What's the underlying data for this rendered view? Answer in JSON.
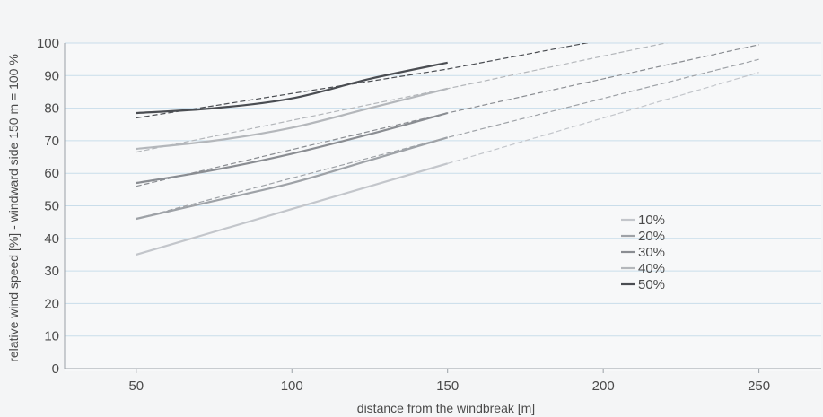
{
  "chart_data": {
    "type": "line",
    "xlabel": "distance from the windbreak [m]",
    "ylabel": "relative wind speed [%] - windward side 150 m = 100 %",
    "xlim": [
      27,
      270
    ],
    "ylim": [
      0,
      100
    ],
    "x_ticks": [
      50,
      100,
      150,
      200,
      250
    ],
    "y_ticks": [
      0,
      10,
      20,
      30,
      40,
      50,
      60,
      70,
      80,
      90,
      100
    ],
    "grid": "horizontal",
    "legend_position": "right",
    "series": [
      {
        "name": "10%",
        "color": "#c3c6cb",
        "solid": {
          "x": [
            50,
            75,
            100,
            125,
            150
          ],
          "y": [
            35,
            42,
            49,
            56,
            63
          ]
        },
        "trend": {
          "x": [
            150,
            200,
            250
          ],
          "y": [
            63,
            77,
            91
          ]
        }
      },
      {
        "name": "20%",
        "color": "#9ea2a7",
        "solid": {
          "x": [
            50,
            75,
            100,
            125,
            150
          ],
          "y": [
            46,
            51.5,
            57,
            64,
            71
          ]
        },
        "trend": {
          "x": [
            50,
            150,
            200,
            250
          ],
          "y": [
            46,
            71,
            83,
            95
          ]
        }
      },
      {
        "name": "30%",
        "color": "#8a8d92",
        "solid": {
          "x": [
            50,
            75,
            100,
            125,
            150
          ],
          "y": [
            57,
            61,
            66,
            72,
            78.5
          ]
        },
        "trend": {
          "x": [
            50,
            150,
            200,
            250
          ],
          "y": [
            56,
            78.5,
            89,
            99.5
          ]
        }
      },
      {
        "name": "40%",
        "color": "#b4b7bb",
        "solid": {
          "x": [
            50,
            75,
            100,
            125,
            150
          ],
          "y": [
            67.5,
            70,
            74,
            80,
            86
          ]
        },
        "trend": {
          "x": [
            50,
            150,
            200,
            250
          ],
          "y": [
            66.5,
            86,
            96,
            106
          ]
        }
      },
      {
        "name": "50%",
        "color": "#4a4d52",
        "solid": {
          "x": [
            50,
            75,
            100,
            125,
            150
          ],
          "y": [
            78.5,
            80,
            83,
            89,
            94
          ]
        },
        "trend": {
          "x": [
            50,
            150,
            200,
            250
          ],
          "y": [
            77,
            92,
            101,
            110
          ]
        }
      }
    ]
  }
}
